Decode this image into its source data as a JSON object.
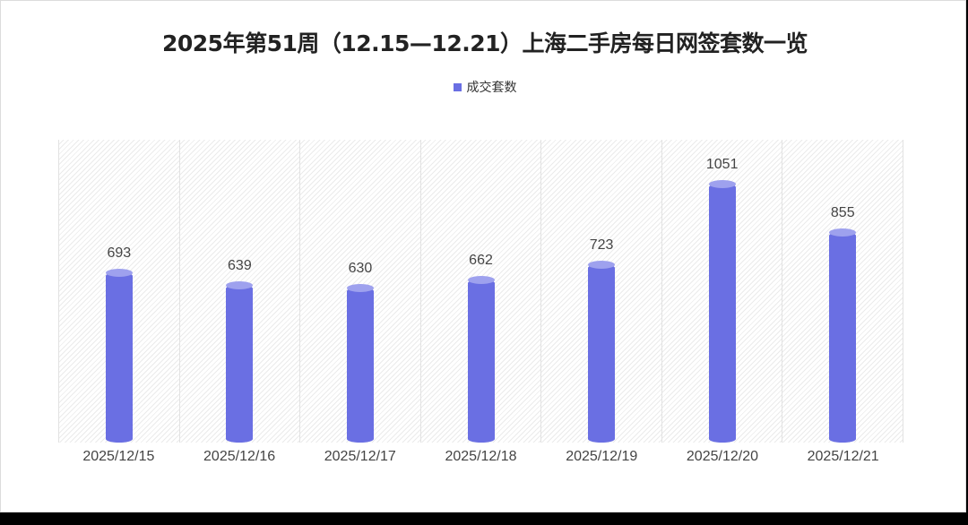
{
  "title": "2025年第51周（12.15—12.21）上海二手房每日网签套数一览",
  "legend": {
    "label": "成交套数",
    "color": "#6a6fe3"
  },
  "colors": {
    "bar": "#6a6fe3",
    "bar_cap": "#9ea1ee",
    "label": "#444444"
  },
  "chart_data": {
    "type": "bar",
    "title": "2025年第51周（12.15—12.21）上海二手房每日网签套数一览",
    "categories": [
      "2025/12/15",
      "2025/12/16",
      "2025/12/17",
      "2025/12/18",
      "2025/12/19",
      "2025/12/20",
      "2025/12/21"
    ],
    "series": [
      {
        "name": "成交套数",
        "values": [
          693,
          639,
          630,
          662,
          723,
          1051,
          855
        ]
      }
    ],
    "xlabel": "",
    "ylabel": "",
    "ylim": [
      0,
      1230
    ],
    "grid": false,
    "legend_position": "top",
    "data_labels": true,
    "bar_style": "cylinder"
  }
}
